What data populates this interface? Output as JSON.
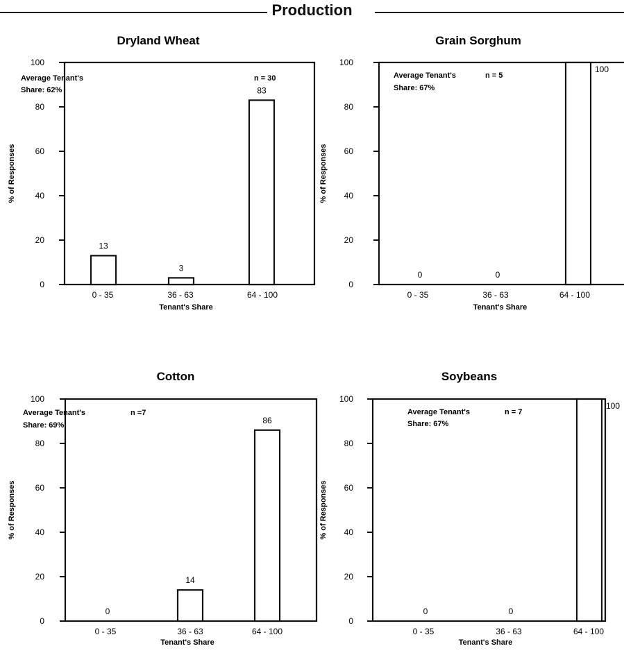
{
  "header": {
    "title": "Production"
  },
  "chart_data": [
    {
      "type": "bar",
      "title": "Dryland Wheat",
      "xlabel": "Tenant's Share",
      "ylabel": "% of Responses",
      "categories": [
        "0 - 35",
        "36 - 63",
        "64 - 100"
      ],
      "values": [
        13,
        3,
        83
      ],
      "ylim": [
        0,
        100
      ],
      "yticks": [
        0,
        20,
        40,
        60,
        80,
        100
      ],
      "annotations": {
        "average_line1": "Average Tenant's",
        "average_line2": "Share: 62%",
        "n": "n = 30"
      },
      "grid": false
    },
    {
      "type": "bar",
      "title": "Grain Sorghum",
      "xlabel": "Tenant's Share",
      "ylabel": "% of Responses",
      "categories": [
        "0 - 35",
        "36 - 63",
        "64 - 100"
      ],
      "values": [
        0,
        0,
        100
      ],
      "ylim": [
        0,
        100
      ],
      "yticks": [
        0,
        20,
        40,
        60,
        80,
        100
      ],
      "annotations": {
        "average_line1": "Average Tenant's",
        "average_line2": "Share: 67%",
        "n": "n = 5"
      },
      "grid": false
    },
    {
      "type": "bar",
      "title": "Cotton",
      "xlabel": "Tenant's Share",
      "ylabel": "% of Responses",
      "categories": [
        "0 - 35",
        "36 - 63",
        "64 - 100"
      ],
      "values": [
        0,
        14,
        86
      ],
      "ylim": [
        0,
        100
      ],
      "yticks": [
        0,
        20,
        40,
        60,
        80,
        100
      ],
      "annotations": {
        "average_line1": "Average Tenant's",
        "average_line2": "Share: 69%",
        "n": "n =7"
      },
      "grid": false
    },
    {
      "type": "bar",
      "title": "Soybeans",
      "xlabel": "Tenant's Share",
      "ylabel": "% of Responses",
      "categories": [
        "0 - 35",
        "36 - 63",
        "64 - 100"
      ],
      "values": [
        0,
        0,
        100
      ],
      "ylim": [
        0,
        100
      ],
      "yticks": [
        0,
        20,
        40,
        60,
        80,
        100
      ],
      "annotations": {
        "average_line1": "Average Tenant's",
        "average_line2": "Share: 67%",
        "n": "n = 7"
      },
      "grid": false
    }
  ]
}
